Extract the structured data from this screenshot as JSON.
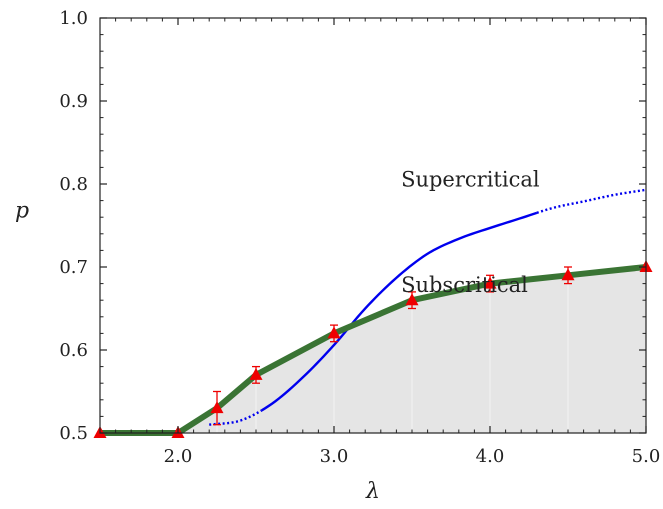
{
  "chart_data": {
    "type": "line",
    "title": "",
    "xlabel": "λ",
    "ylabel": "p",
    "xlim": [
      1.5,
      5.0
    ],
    "ylim": [
      0.5,
      1.0
    ],
    "x_ticks": [
      2.0,
      3.0,
      4.0,
      5.0
    ],
    "x_tick_labels": [
      "2.0",
      "3.0",
      "4.0",
      "5.0"
    ],
    "y_ticks": [
      0.5,
      0.6,
      0.7,
      0.8,
      0.9,
      1.0
    ],
    "y_tick_labels": [
      "0.5",
      "0.6",
      "0.7",
      "0.8",
      "0.9",
      "1.0"
    ],
    "grid": false,
    "legend": "none",
    "annotations": [
      {
        "text": "Supercritical",
        "x": 3.43,
        "y": 0.797
      },
      {
        "text": "Subscritical",
        "x": 3.43,
        "y": 0.67
      }
    ],
    "series": [
      {
        "style": "thick-line-with-triangle-markers-and-error-bars",
        "color": "#3a7434",
        "marker_color": "#ee0000",
        "fill_below_color": "#e5e5e5",
        "x": [
          1.5,
          2.0,
          2.25,
          2.5,
          3.0,
          3.5,
          4.0,
          4.5,
          5.0
        ],
        "y": [
          0.5,
          0.5,
          0.53,
          0.57,
          0.62,
          0.66,
          0.68,
          0.69,
          0.7
        ],
        "y_err": [
          0,
          0,
          0.02,
          0.01,
          0.01,
          0.01,
          0.01,
          0.01,
          0.0
        ]
      },
      {
        "style": "thin-blue-curve",
        "color": "#0000ee",
        "dotted_segments": "tails",
        "x": [
          2.2,
          2.4,
          2.6,
          2.8,
          3.0,
          3.2,
          3.4,
          3.6,
          3.8,
          4.0,
          4.2,
          4.4,
          4.6,
          4.8,
          5.0
        ],
        "y": [
          0.51,
          0.515,
          0.535,
          0.567,
          0.606,
          0.65,
          0.687,
          0.716,
          0.734,
          0.747,
          0.759,
          0.771,
          0.779,
          0.787,
          0.793
        ]
      }
    ]
  }
}
